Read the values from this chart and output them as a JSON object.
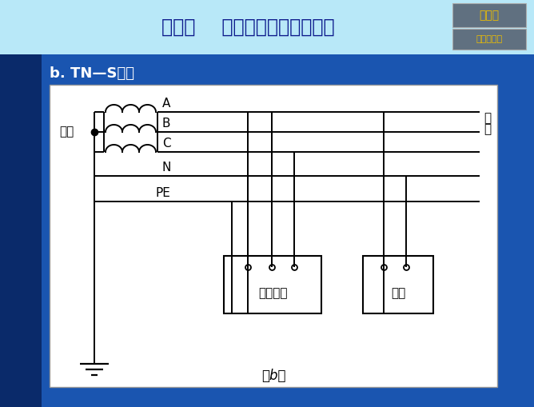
{
  "title": "第一节    建筑供配电系统的组成",
  "subtitle": "b. TN—S系统",
  "caption": "（b）",
  "label_dianyan": "电源",
  "label_fuzhe1": "负",
  "label_fuzhe2": "荷",
  "label_A": "A",
  "label_B": "B",
  "label_C": "C",
  "label_N": "N",
  "label_PE": "PE",
  "label_sanxiang": "三相设备",
  "label_danxiang": "单相",
  "top_bar_color": "#b8e8f8",
  "bg_color": "#1a55b0",
  "diagram_bg": "#ffffff",
  "title_color": "#0d1a8c",
  "subtitle_color": "#ffffff",
  "btn_bg": "#607080",
  "btn_text_color": "#f0c000",
  "btn1_text": "总目录",
  "btn2_text": "本章总目录",
  "line_color": "#000000",
  "left_strip_color": "#0a2a6a"
}
